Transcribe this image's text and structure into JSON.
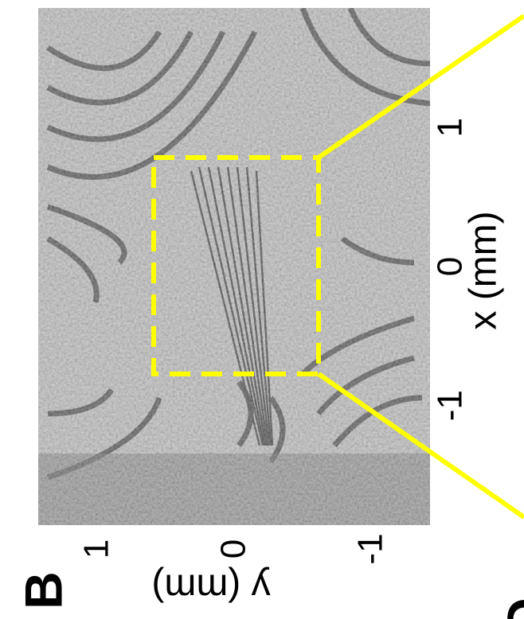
{
  "chart_data": {
    "type": "image",
    "panel_label": "B",
    "next_panel_label": "D",
    "xlabel": "x (mm)",
    "ylabel": "y (mm)",
    "xlim": [
      -1.86,
      1.86
    ],
    "xticks": [
      -1,
      0,
      1
    ],
    "ylim": [
      1.44,
      -1.42
    ],
    "yticks": [
      1,
      0,
      -1
    ],
    "box_color": "#ffff00"
  }
}
